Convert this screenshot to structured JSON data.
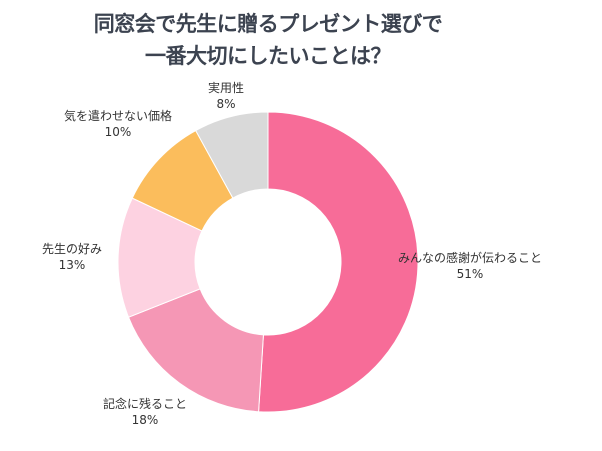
{
  "chart_data": {
    "type": "pie",
    "donut": true,
    "title_lines": [
      "同窓会で先生に贈るプレゼント選びで",
      "一番大切にしたいことは？"
    ],
    "categories": [
      "みんなの感謝が伝わること",
      "記念に残ること",
      "先生の好み",
      "気を遣わせない価格",
      "実用性"
    ],
    "values": [
      51,
      18,
      13,
      10,
      8
    ],
    "value_labels": [
      "51%",
      "18%",
      "13%",
      "10%",
      "8%"
    ],
    "colors": [
      "#f76c98",
      "#f597b5",
      "#fdd2e1",
      "#fbbd5c",
      "#d9d9d9"
    ],
    "start": "top",
    "direction": "clockwise"
  }
}
